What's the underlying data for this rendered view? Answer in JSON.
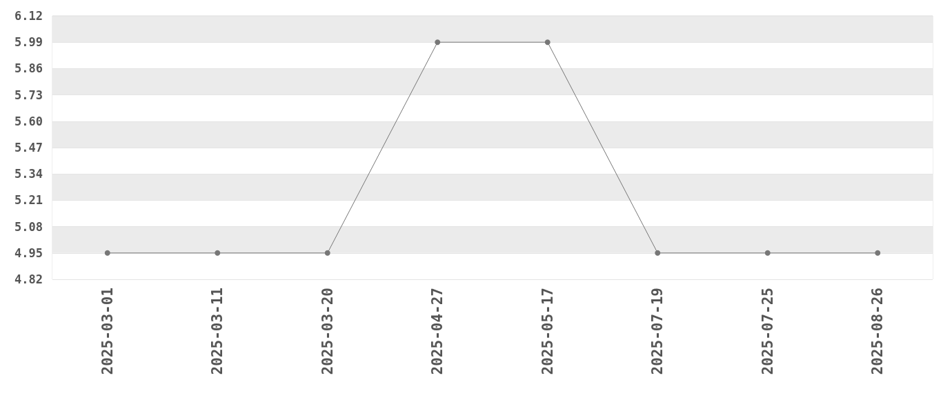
{
  "chart_data": {
    "type": "line",
    "categories": [
      "2025-03-01",
      "2025-03-11",
      "2025-03-20",
      "2025-04-27",
      "2025-05-17",
      "2025-07-19",
      "2025-07-25",
      "2025-08-26"
    ],
    "series": [
      {
        "color": "#777777",
        "values": [
          4.95,
          4.95,
          4.95,
          5.99,
          5.99,
          4.95,
          4.95,
          4.95
        ]
      }
    ],
    "ylim": [
      4.82,
      6.12
    ],
    "yticks": [
      4.82,
      4.95,
      5.08,
      5.21,
      5.34,
      5.47,
      {
        "value": 5.6,
        "label": "5.60"
      },
      5.73,
      5.86,
      5.99,
      6.12
    ],
    "grid": "y",
    "marker": "circle",
    "line_style": "solid"
  }
}
